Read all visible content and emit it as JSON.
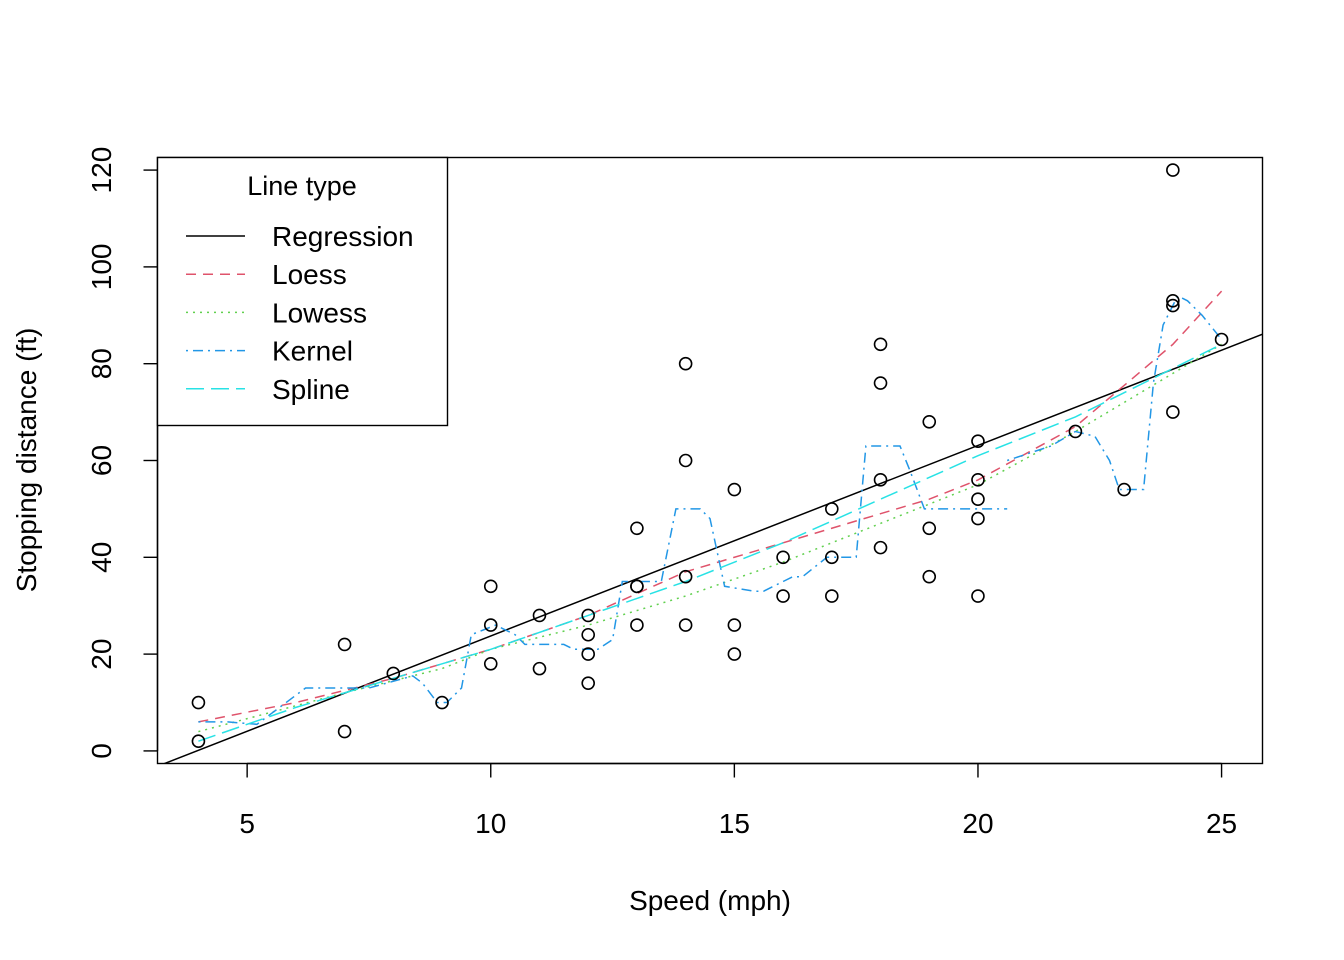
{
  "chart_data": {
    "type": "scatter",
    "xlabel": "Speed (mph)",
    "ylabel": "Stopping distance (ft)",
    "xlim": [
      3.16,
      25.84
    ],
    "ylim": [
      -2.6,
      122.6
    ],
    "xticks": [
      "5",
      "10",
      "15",
      "20",
      "25"
    ],
    "yticks": [
      "0",
      "20",
      "40",
      "60",
      "80",
      "100",
      "120"
    ],
    "grid": false,
    "legend": {
      "title": "Line type",
      "placement": "top-left",
      "entries": [
        "Regression",
        "Loess",
        "Lowess",
        "Kernel",
        "Spline"
      ]
    },
    "points": [
      [
        4,
        2
      ],
      [
        4,
        10
      ],
      [
        7,
        4
      ],
      [
        7,
        22
      ],
      [
        8,
        16
      ],
      [
        9,
        10
      ],
      [
        10,
        18
      ],
      [
        10,
        26
      ],
      [
        10,
        34
      ],
      [
        11,
        17
      ],
      [
        11,
        28
      ],
      [
        12,
        14
      ],
      [
        12,
        20
      ],
      [
        12,
        24
      ],
      [
        12,
        28
      ],
      [
        13,
        26
      ],
      [
        13,
        34
      ],
      [
        13,
        34
      ],
      [
        13,
        46
      ],
      [
        14,
        26
      ],
      [
        14,
        36
      ],
      [
        14,
        60
      ],
      [
        14,
        80
      ],
      [
        15,
        20
      ],
      [
        15,
        26
      ],
      [
        15,
        54
      ],
      [
        16,
        32
      ],
      [
        16,
        40
      ],
      [
        17,
        32
      ],
      [
        17,
        40
      ],
      [
        17,
        50
      ],
      [
        18,
        42
      ],
      [
        18,
        56
      ],
      [
        18,
        76
      ],
      [
        18,
        84
      ],
      [
        19,
        36
      ],
      [
        19,
        46
      ],
      [
        19,
        68
      ],
      [
        20,
        32
      ],
      [
        20,
        48
      ],
      [
        20,
        52
      ],
      [
        20,
        56
      ],
      [
        20,
        64
      ],
      [
        22,
        66
      ],
      [
        23,
        54
      ],
      [
        24,
        70
      ],
      [
        24,
        92
      ],
      [
        24,
        93
      ],
      [
        24,
        120
      ],
      [
        25,
        85
      ]
    ],
    "series": [
      {
        "name": "Regression",
        "color": "#000000",
        "dash": "solid",
        "x": [
          3.16,
          25.84
        ],
        "y": [
          -3.17,
          86.1
        ]
      },
      {
        "name": "Loess",
        "color": "#DF536B",
        "dash": "dashed",
        "x": [
          4,
          6,
          8,
          10,
          12,
          14,
          16,
          18,
          19,
          20,
          22,
          24,
          25
        ],
        "y": [
          6,
          10,
          15,
          21,
          28,
          37,
          43,
          49,
          52,
          56,
          67,
          84,
          95
        ]
      },
      {
        "name": "Lowess",
        "color": "#61D04F",
        "dash": "dotted",
        "x": [
          4,
          7,
          9,
          10,
          12,
          14,
          16,
          17,
          18,
          19,
          20,
          22,
          24,
          25
        ],
        "y": [
          4,
          12,
          17,
          21,
          26,
          32,
          39,
          43,
          47,
          51,
          55,
          66,
          78,
          84
        ]
      },
      {
        "name": "Kernel",
        "color": "#2297E6",
        "dash": "dotdash",
        "x": [
          4,
          4.6,
          5.2,
          6.2,
          6.5,
          7.5,
          8.4,
          8.6,
          8.9,
          9.1,
          9.4,
          9.6,
          10.1,
          10.5,
          10.7,
          11.5,
          11.7,
          12.2,
          12.5,
          12.7,
          13.3,
          13.5,
          13.8,
          14.3,
          14.5,
          14.8,
          15.4,
          15.6,
          16.2,
          16.4,
          16.9,
          17.4,
          17.5,
          17.7,
          18.4,
          18.6,
          18.9,
          19.5,
          19.7,
          20.6
        ],
        "y": [
          6,
          6,
          5.5,
          13,
          13,
          13,
          15.5,
          14,
          10,
          10,
          13,
          24,
          26,
          24,
          22,
          22,
          21,
          21,
          23,
          35,
          35,
          35,
          50,
          50,
          48,
          34,
          33,
          33,
          36,
          36,
          40,
          40,
          40,
          63,
          63,
          58,
          50,
          50,
          50,
          50
        ]
      },
      {
        "name": "Kernel",
        "color": "#2297E6",
        "dash": "dotdash",
        "x": [
          20.6,
          21.5,
          22.0,
          22.4,
          22.7,
          22.9,
          23.4,
          23.6,
          23.8,
          24.1,
          24.3,
          24.6,
          25
        ],
        "y": [
          60,
          63,
          66,
          65,
          60,
          54,
          54,
          76,
          88,
          94,
          93,
          90,
          85
        ]
      },
      {
        "name": "Spline",
        "color": "#28E2E5",
        "dash": "longdash",
        "x": [
          4,
          6,
          8,
          10,
          12,
          14,
          16,
          18,
          20,
          22,
          24,
          25
        ],
        "y": [
          2,
          9,
          15,
          21,
          28,
          35,
          43,
          52,
          61,
          69,
          79,
          84
        ]
      }
    ]
  }
}
